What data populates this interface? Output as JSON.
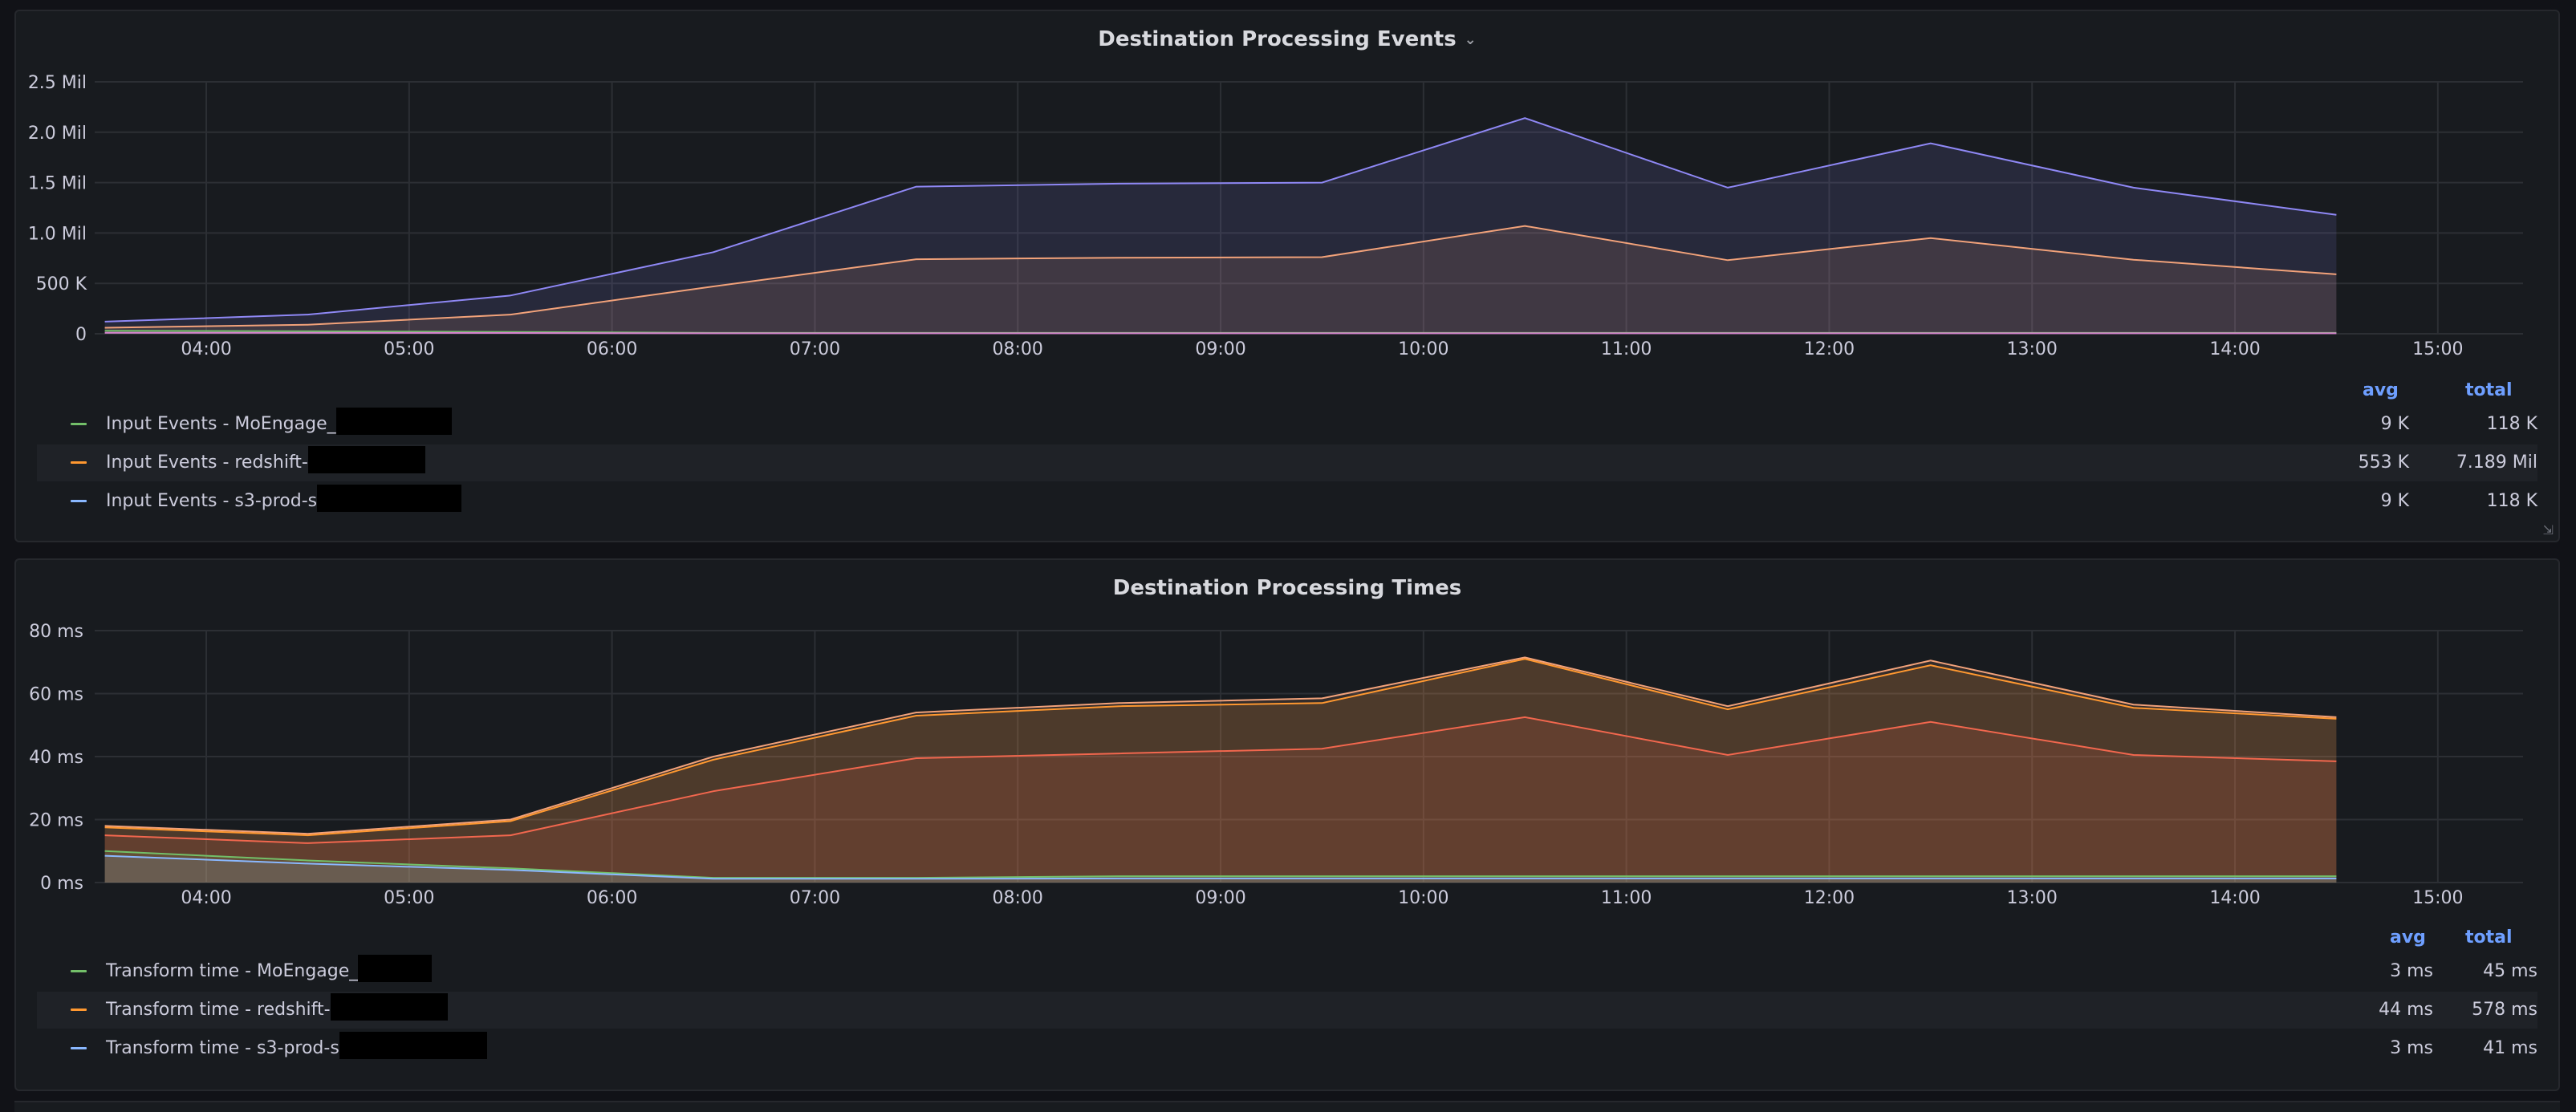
{
  "colors": {
    "background": "#111217",
    "panel": "#181b1f",
    "grid": "#2c2f34",
    "legend_header": "#6e9fff",
    "series_green": "#73bf69",
    "series_orange": "#ff9830",
    "series_blue": "#8ab8ff",
    "series_purple": "#8f88f5",
    "series_peach": "#f2a27a",
    "series_red": "#f2674e",
    "series_pink": "#d683ce"
  },
  "icons": {
    "title_dropdown": "chevron-down-icon"
  },
  "legend_headers": {
    "avg": "avg",
    "total": "total"
  },
  "panels": [
    {
      "title": "Destination Processing Events",
      "has_dropdown": true,
      "legend": [
        {
          "label": "Input Events - MoEngage_",
          "color": "#73bf69",
          "avg": "9 K",
          "total": "118 K"
        },
        {
          "label": "Input Events - redshift-",
          "color": "#ff9830",
          "avg": "553 K",
          "total": "7.189 Mil"
        },
        {
          "label": "Input Events - s3-prod-s",
          "color": "#8ab8ff",
          "avg": "9 K",
          "total": "118 K"
        }
      ]
    },
    {
      "title": "Destination Processing Times",
      "has_dropdown": false,
      "legend": [
        {
          "label": "Transform time - MoEngage_",
          "color": "#73bf69",
          "avg": "3 ms",
          "total": "45 ms"
        },
        {
          "label": "Transform time - redshift-",
          "color": "#ff9830",
          "avg": "44 ms",
          "total": "578 ms"
        },
        {
          "label": "Transform time - s3-prod-s",
          "color": "#8ab8ff",
          "avg": "3 ms",
          "total": "41 ms"
        }
      ]
    }
  ],
  "chart_data": [
    {
      "type": "area",
      "title": "Destination Processing Events",
      "x_unit": "hours",
      "xlim": [
        3.45,
        15.42
      ],
      "ylim": [
        0,
        2500000
      ],
      "x_ticks": [
        4,
        5,
        6,
        7,
        8,
        9,
        10,
        11,
        12,
        13,
        14,
        15
      ],
      "x_tick_labels": [
        "04:00",
        "05:00",
        "06:00",
        "07:00",
        "08:00",
        "09:00",
        "10:00",
        "11:00",
        "12:00",
        "13:00",
        "14:00",
        "15:00"
      ],
      "y_ticks": [
        0,
        500000,
        1000000,
        1500000,
        2000000,
        2500000
      ],
      "y_tick_labels": [
        "0",
        "500 K",
        "1.0 Mil",
        "1.5 Mil",
        "2.0 Mil",
        "2.5 Mil"
      ],
      "grid": true,
      "legend_placement": "bottom",
      "x": [
        3.5,
        4.5,
        5.5,
        6.5,
        7.5,
        8.5,
        9.5,
        10.5,
        11.5,
        12.5,
        13.5,
        14.5
      ],
      "series": [
        {
          "color": "#8f88f5",
          "values": [
            120000,
            190000,
            380000,
            810000,
            1460000,
            1490000,
            1500000,
            2140000,
            1450000,
            1890000,
            1450000,
            1180000
          ]
        },
        {
          "color": "#f2a27a",
          "values": [
            60000,
            90000,
            190000,
            470000,
            740000,
            755000,
            760000,
            1070000,
            730000,
            950000,
            735000,
            590000
          ]
        },
        {
          "color": "#73bf69",
          "values": [
            30000,
            25000,
            18000,
            9000,
            9000,
            9000,
            9000,
            9000,
            9000,
            9000,
            9000,
            9000
          ]
        },
        {
          "color": "#d683ce",
          "values": [
            10000,
            10000,
            8000,
            5000,
            5000,
            5000,
            5000,
            5000,
            5000,
            5000,
            5000,
            5000
          ]
        }
      ]
    },
    {
      "type": "area",
      "title": "Destination Processing Times",
      "x_unit": "hours",
      "xlim": [
        3.45,
        15.42
      ],
      "ylim": [
        0,
        80
      ],
      "x_ticks": [
        4,
        5,
        6,
        7,
        8,
        9,
        10,
        11,
        12,
        13,
        14,
        15
      ],
      "x_tick_labels": [
        "04:00",
        "05:00",
        "06:00",
        "07:00",
        "08:00",
        "09:00",
        "10:00",
        "11:00",
        "12:00",
        "13:00",
        "14:00",
        "15:00"
      ],
      "y_ticks": [
        0,
        20,
        40,
        60,
        80
      ],
      "y_tick_labels": [
        "0 ms",
        "20 ms",
        "40 ms",
        "60 ms",
        "80 ms"
      ],
      "grid": true,
      "legend_placement": "bottom",
      "x": [
        3.5,
        4.5,
        5.5,
        6.5,
        7.5,
        8.5,
        9.5,
        10.5,
        11.5,
        12.5,
        13.5,
        14.5
      ],
      "series": [
        {
          "color": "#f2a27a",
          "values": [
            18,
            15.5,
            20,
            40,
            54,
            57,
            58.5,
            71.5,
            56,
            70.5,
            56.5,
            52.5
          ]
        },
        {
          "color": "#ff9830",
          "values": [
            17.5,
            15,
            19.5,
            39,
            53,
            56,
            57,
            71,
            55,
            69,
            55.5,
            52
          ]
        },
        {
          "color": "#f2674e",
          "values": [
            15,
            12.5,
            15,
            29,
            39.5,
            41,
            42.5,
            52.5,
            40.5,
            51,
            40.5,
            38.5
          ]
        },
        {
          "color": "#73bf69",
          "values": [
            10,
            7,
            4.5,
            1.5,
            1.5,
            2,
            2,
            2,
            2,
            2,
            2,
            2
          ]
        },
        {
          "color": "#8ab8ff",
          "values": [
            8.5,
            6,
            4,
            1.2,
            1.2,
            1.3,
            1.3,
            1.3,
            1.3,
            1.3,
            1.3,
            1.3
          ]
        }
      ]
    }
  ]
}
